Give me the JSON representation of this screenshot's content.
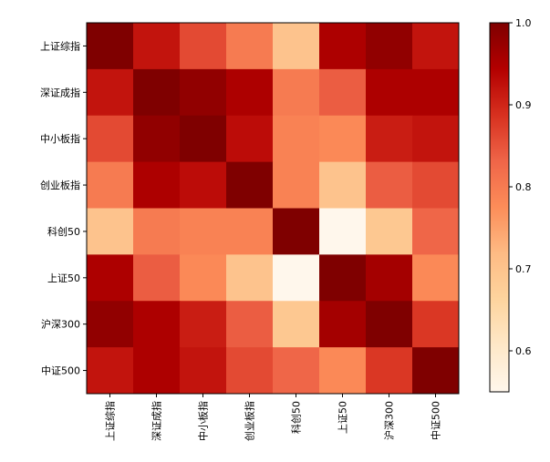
{
  "chart_data": {
    "type": "heatmap",
    "title": "",
    "xlabel": "",
    "ylabel": "",
    "x_categories": [
      "上证综指",
      "深证成指",
      "中小板指",
      "创业板指",
      "科创50",
      "上证50",
      "沪深300",
      "中证500"
    ],
    "y_categories": [
      "上证综指",
      "深证成指",
      "中小板指",
      "创业板指",
      "科创50",
      "上证50",
      "沪深300",
      "中证500"
    ],
    "values": [
      [
        1.0,
        0.92,
        0.86,
        0.8,
        0.7,
        0.95,
        0.98,
        0.92
      ],
      [
        0.92,
        1.0,
        0.98,
        0.95,
        0.8,
        0.84,
        0.95,
        0.95
      ],
      [
        0.86,
        0.98,
        1.0,
        0.93,
        0.79,
        0.78,
        0.91,
        0.92
      ],
      [
        0.8,
        0.95,
        0.93,
        1.0,
        0.79,
        0.7,
        0.84,
        0.86
      ],
      [
        0.7,
        0.8,
        0.79,
        0.79,
        1.0,
        0.55,
        0.69,
        0.83
      ],
      [
        0.95,
        0.84,
        0.78,
        0.7,
        0.55,
        1.0,
        0.96,
        0.78
      ],
      [
        0.98,
        0.95,
        0.91,
        0.84,
        0.69,
        0.96,
        1.0,
        0.88
      ],
      [
        0.92,
        0.95,
        0.92,
        0.86,
        0.83,
        0.78,
        0.88,
        1.0
      ]
    ],
    "colormap": "OrRd",
    "colorbar": {
      "min": 0.55,
      "max": 1.0,
      "ticks": [
        0.6,
        0.7,
        0.8,
        0.9,
        1.0
      ],
      "tick_labels": [
        "0.6",
        "0.7",
        "0.8",
        "0.9",
        "1.0"
      ]
    },
    "grid": false,
    "legend": "none"
  }
}
